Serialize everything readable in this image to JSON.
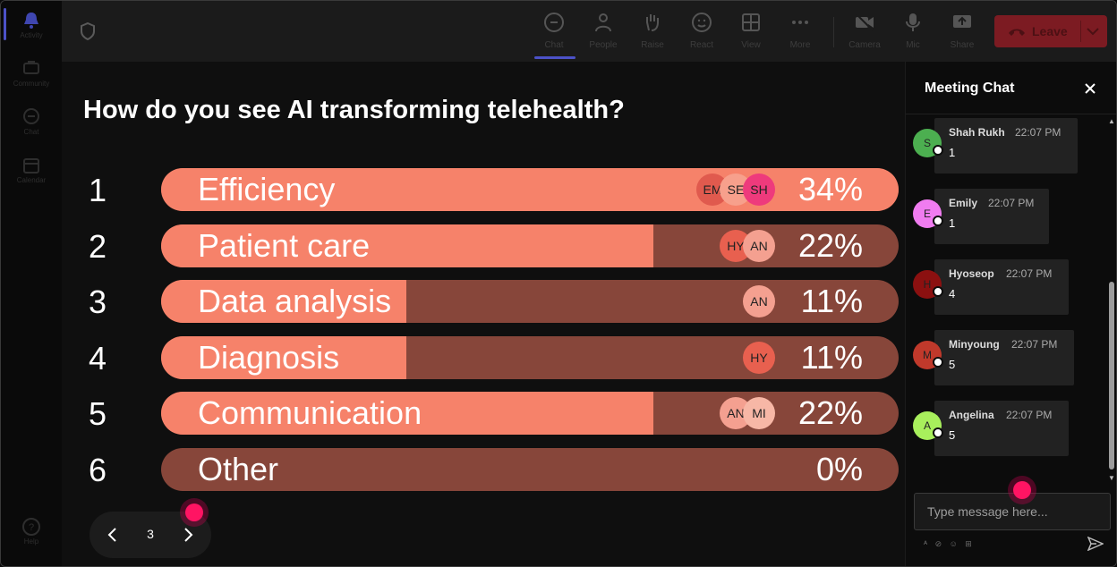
{
  "rail": {
    "items": [
      {
        "label": "Activity",
        "icon": "bell-icon"
      },
      {
        "label": "Community",
        "icon": "community-icon"
      },
      {
        "label": "Chat",
        "icon": "chat-icon"
      },
      {
        "label": "Calendar",
        "icon": "calendar-icon"
      },
      {
        "label": "Help",
        "icon": "help-icon"
      }
    ]
  },
  "toolbar": {
    "chat": "Chat",
    "people": "People",
    "raise": "Raise",
    "react": "React",
    "view": "View",
    "more": "More",
    "camera": "Camera",
    "mic": "Mic",
    "share": "Share",
    "leave": "Leave"
  },
  "poll": {
    "question": "How do you see AI transforming telehealth?",
    "options": [
      {
        "num": "1",
        "label": "Efficiency",
        "pct": "34%",
        "fill": 1.0,
        "voters": [
          "EM",
          "SE",
          "SH"
        ]
      },
      {
        "num": "2",
        "label": "Patient care",
        "pct": "22%",
        "fill": 0.667,
        "voters": [
          "HY",
          "AN"
        ]
      },
      {
        "num": "3",
        "label": "Data analysis",
        "pct": "11%",
        "fill": 0.333,
        "voters": [
          "AN"
        ]
      },
      {
        "num": "4",
        "label": "Diagnosis",
        "pct": "11%",
        "fill": 0.333,
        "voters": [
          "HY"
        ]
      },
      {
        "num": "5",
        "label": "Communication",
        "pct": "22%",
        "fill": 0.667,
        "voters": [
          "AN",
          "MI"
        ]
      },
      {
        "num": "6",
        "label": "Other",
        "pct": "0%",
        "fill": 0.0,
        "voters": []
      }
    ],
    "page": "3"
  },
  "chat": {
    "title": "Meeting Chat",
    "messages": [
      {
        "initial": "S",
        "name": "Shah Rukh",
        "time": "22:07 PM",
        "text": "1",
        "color": "#4caf50"
      },
      {
        "initial": "E",
        "name": "Emily",
        "time": "22:07 PM",
        "text": "1",
        "color": "#f07cf0"
      },
      {
        "initial": "H",
        "name": "Hyoseop",
        "time": "22:07 PM",
        "text": "4",
        "color": "#8b1010"
      },
      {
        "initial": "M",
        "name": "Minyoung",
        "time": "22:07 PM",
        "text": "5",
        "color": "#c0392b"
      },
      {
        "initial": "A",
        "name": "Angelina",
        "time": "22:07 PM",
        "text": "5",
        "color": "#a8ef5c"
      }
    ],
    "input_placeholder": "Type message here..."
  },
  "colors": {
    "bar_fill": "#f6826a",
    "bar_track": "#87463a",
    "accent": "#4c52c8",
    "leave": "#7c1b22"
  }
}
